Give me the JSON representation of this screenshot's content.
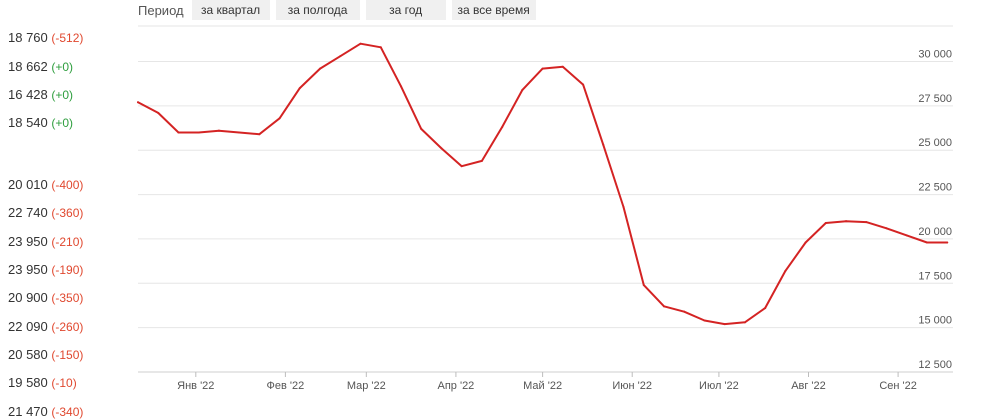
{
  "period_bar": {
    "label": "Период",
    "buttons": [
      {
        "label": "за квартал"
      },
      {
        "label": "за полгода"
      },
      {
        "label": "за год"
      },
      {
        "label": "за все время"
      }
    ]
  },
  "price_list": [
    {
      "price": "18 760",
      "delta": "(-512)",
      "sign": "neg"
    },
    {
      "price": "18 662",
      "delta": "(+0)",
      "sign": "pos"
    },
    {
      "price": "16 428",
      "delta": "(+0)",
      "sign": "pos"
    },
    {
      "price": "18 540",
      "delta": "(+0)",
      "sign": "pos"
    },
    {
      "price": "20 010",
      "delta": "(-400)",
      "sign": "neg"
    },
    {
      "price": "22 740",
      "delta": "(-360)",
      "sign": "neg"
    },
    {
      "price": "23 950",
      "delta": "(-210)",
      "sign": "neg"
    },
    {
      "price": "23 950",
      "delta": "(-190)",
      "sign": "neg"
    },
    {
      "price": "20 900",
      "delta": "(-350)",
      "sign": "neg"
    },
    {
      "price": "22 090",
      "delta": "(-260)",
      "sign": "neg"
    },
    {
      "price": "20 580",
      "delta": "(-150)",
      "sign": "neg"
    },
    {
      "price": "19 580",
      "delta": "(-10)",
      "sign": "neg"
    },
    {
      "price": "21 470",
      "delta": "(-340)",
      "sign": "neg"
    }
  ],
  "colors": {
    "line": "#d42323",
    "grid": "#e6e6e6",
    "negative_delta": "#e0482f",
    "positive_delta": "#2e9e3e"
  },
  "chart_data": {
    "type": "line",
    "title": "",
    "xlabel": "",
    "ylabel": "",
    "grid": true,
    "ylim": [
      12500,
      32000
    ],
    "y_ticks": [
      12500,
      15000,
      17500,
      20000,
      22500,
      25000,
      27500,
      30000
    ],
    "y_tick_labels": [
      "12 500",
      "15 000",
      "17 500",
      "20 000",
      "22 500",
      "25 000",
      "27 500",
      "30 000"
    ],
    "x_ticks": [
      {
        "label": "Янв '22",
        "date": "2022-01-01"
      },
      {
        "label": "Фев '22",
        "date": "2022-02-01"
      },
      {
        "label": "Мар '22",
        "date": "2022-03-01"
      },
      {
        "label": "Апр '22",
        "date": "2022-04-01"
      },
      {
        "label": "Май '22",
        "date": "2022-05-01"
      },
      {
        "label": "Июн '22",
        "date": "2022-06-01"
      },
      {
        "label": "Июл '22",
        "date": "2022-07-01"
      },
      {
        "label": "Авг '22",
        "date": "2022-08-01"
      },
      {
        "label": "Сен '22",
        "date": "2022-09-01"
      }
    ],
    "xlim": [
      "2021-12-12",
      "2022-09-20"
    ],
    "series": [
      {
        "x": [
          "2021-12-12",
          "2021-12-19",
          "2021-12-26",
          "2022-01-02",
          "2022-01-09",
          "2022-01-16",
          "2022-01-23",
          "2022-01-30",
          "2022-02-06",
          "2022-02-13",
          "2022-02-20",
          "2022-02-27",
          "2022-03-06",
          "2022-03-13",
          "2022-03-20",
          "2022-03-27",
          "2022-04-03",
          "2022-04-10",
          "2022-04-17",
          "2022-04-24",
          "2022-05-01",
          "2022-05-08",
          "2022-05-15",
          "2022-05-22",
          "2022-05-29",
          "2022-06-05",
          "2022-06-12",
          "2022-06-19",
          "2022-06-26",
          "2022-07-03",
          "2022-07-10",
          "2022-07-17",
          "2022-07-24",
          "2022-07-31",
          "2022-08-07",
          "2022-08-14",
          "2022-08-21",
          "2022-08-28",
          "2022-09-04",
          "2022-09-11",
          "2022-09-18"
        ],
        "values": [
          27700,
          27100,
          26000,
          26000,
          26100,
          26000,
          25900,
          26800,
          28500,
          29600,
          30300,
          31000,
          30800,
          28600,
          26200,
          25100,
          24100,
          24400,
          26300,
          28400,
          29600,
          29700,
          28700,
          25300,
          21800,
          17400,
          16200,
          15900,
          15400,
          15200,
          15300,
          16100,
          18200,
          19800,
          20900,
          21000,
          20950,
          20600,
          20200,
          19800,
          19800
        ]
      }
    ]
  }
}
